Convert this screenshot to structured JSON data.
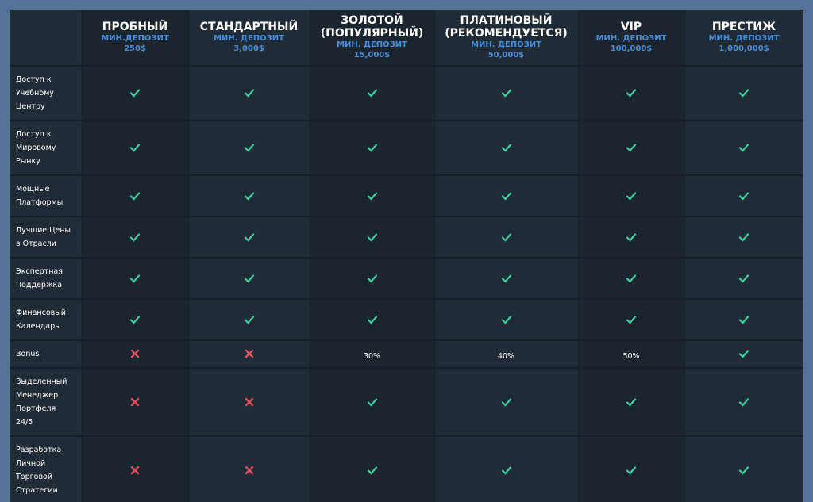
{
  "table": {
    "columns": [
      {
        "name": "ПРОБНЫЙ",
        "deposit_label": "МИН.ДЕПОЗИТ",
        "deposit": "250$"
      },
      {
        "name": "СТАНДАРТНЫЙ",
        "deposit_label": "МИН. ДЕПОЗИТ",
        "deposit": "3,000$"
      },
      {
        "name": "ЗОЛОТОЙ (ПОПУЛЯРНЫЙ)",
        "deposit_label": "МИН. ДЕПОЗИТ",
        "deposit": "15,000$"
      },
      {
        "name": "ПЛАТИНОВЫЙ (РЕКОМЕНДУЕТСЯ)",
        "deposit_label": "МИН. ДЕПОЗИТ",
        "deposit": "50,000$"
      },
      {
        "name": "VIP",
        "deposit_label": "МИН. ДЕПОЗИТ",
        "deposit": "100,000$"
      },
      {
        "name": "ПРЕСТИЖ",
        "deposit_label": "МИН. ДЕПОЗИТ",
        "deposit": "1,000,000$"
      }
    ],
    "rows": [
      {
        "label": "Доступ к Учебному Центру",
        "cells": [
          true,
          true,
          true,
          true,
          true,
          true
        ]
      },
      {
        "label": "Доступ к Мировому Рынку",
        "cells": [
          true,
          true,
          true,
          true,
          true,
          true
        ]
      },
      {
        "label": "Мощные Платформы",
        "cells": [
          true,
          true,
          true,
          true,
          true,
          true
        ]
      },
      {
        "label": "Лучшие Цены в Отрасли",
        "cells": [
          true,
          true,
          true,
          true,
          true,
          true
        ]
      },
      {
        "label": "Экспертная Поддержка",
        "cells": [
          true,
          true,
          true,
          true,
          true,
          true
        ]
      },
      {
        "label": "Финансовый Календарь",
        "cells": [
          true,
          true,
          true,
          true,
          true,
          true
        ]
      },
      {
        "label": "Bonus",
        "cells": [
          false,
          false,
          "30%",
          "40%",
          "50%",
          true
        ]
      },
      {
        "label": "Выделенный Менеджер Портфеля 24/5",
        "cells": [
          false,
          false,
          true,
          true,
          true,
          true
        ]
      },
      {
        "label": "Разработка Личной Торговой Стратегии",
        "cells": [
          false,
          false,
          true,
          true,
          true,
          true
        ]
      }
    ]
  }
}
